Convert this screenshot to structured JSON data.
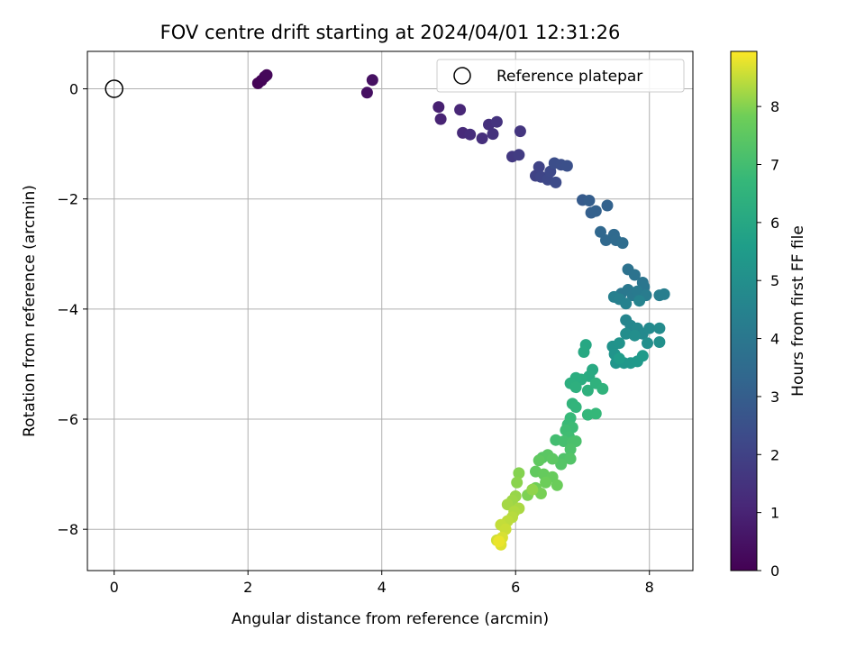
{
  "chart_data": {
    "type": "scatter",
    "title": "FOV centre drift starting at 2024/04/01 12:31:26",
    "xlabel": "Angular distance from reference (arcmin)",
    "ylabel": "Rotation from reference (arcmin)",
    "xlim": [
      -0.4,
      8.65
    ],
    "ylim": [
      -8.75,
      0.68
    ],
    "x_ticks": [
      0,
      2,
      4,
      6,
      8
    ],
    "y_ticks": [
      0,
      -2,
      -4,
      -6,
      -8
    ],
    "grid": true,
    "colormap": "viridis",
    "colorbar": {
      "label": "Hours from first FF file",
      "range": [
        0,
        8.95
      ],
      "ticks": [
        0,
        1,
        2,
        3,
        4,
        5,
        6,
        7,
        8
      ]
    },
    "legend": {
      "position": "top-right",
      "entries": [
        "Reference platepar"
      ]
    },
    "reference_point": {
      "x": 0,
      "y": 0
    },
    "points": [
      [
        2.15,
        0.1,
        0.05
      ],
      [
        2.2,
        0.15,
        0.1
      ],
      [
        2.25,
        0.22,
        0.15
      ],
      [
        2.28,
        0.25,
        0.2
      ],
      [
        3.78,
        -0.07,
        0.4
      ],
      [
        3.86,
        0.16,
        0.45
      ],
      [
        4.85,
        -0.33,
        0.9
      ],
      [
        4.88,
        -0.55,
        1.0
      ],
      [
        5.17,
        -0.38,
        1.1
      ],
      [
        5.21,
        -0.8,
        1.2
      ],
      [
        5.32,
        -0.83,
        1.3
      ],
      [
        5.5,
        -0.9,
        1.35
      ],
      [
        5.6,
        -0.65,
        1.4
      ],
      [
        5.66,
        -0.82,
        1.45
      ],
      [
        5.72,
        -0.6,
        1.5
      ],
      [
        6.07,
        -0.77,
        1.6
      ],
      [
        5.95,
        -1.23,
        1.7
      ],
      [
        6.05,
        -1.2,
        1.8
      ],
      [
        6.3,
        -1.58,
        2.0
      ],
      [
        6.35,
        -1.42,
        2.05
      ],
      [
        6.38,
        -1.6,
        2.1
      ],
      [
        6.48,
        -1.65,
        2.2
      ],
      [
        6.52,
        -1.5,
        2.25
      ],
      [
        6.6,
        -1.7,
        2.3
      ],
      [
        6.58,
        -1.35,
        2.4
      ],
      [
        6.68,
        -1.38,
        2.45
      ],
      [
        6.77,
        -1.4,
        2.5
      ],
      [
        7.0,
        -2.02,
        2.9
      ],
      [
        7.1,
        -2.03,
        3.0
      ],
      [
        7.13,
        -2.25,
        3.05
      ],
      [
        7.2,
        -2.22,
        3.1
      ],
      [
        7.37,
        -2.12,
        3.15
      ],
      [
        7.27,
        -2.6,
        3.35
      ],
      [
        7.35,
        -2.75,
        3.4
      ],
      [
        7.47,
        -2.65,
        3.45
      ],
      [
        7.5,
        -2.75,
        3.5
      ],
      [
        7.6,
        -2.8,
        3.55
      ],
      [
        7.68,
        -3.28,
        3.8
      ],
      [
        7.78,
        -3.38,
        3.85
      ],
      [
        7.9,
        -3.52,
        3.9
      ],
      [
        7.92,
        -3.6,
        3.95
      ],
      [
        7.58,
        -3.72,
        4.0
      ],
      [
        7.68,
        -3.65,
        4.05
      ],
      [
        7.75,
        -3.75,
        4.1
      ],
      [
        7.82,
        -3.68,
        4.15
      ],
      [
        7.95,
        -3.75,
        4.2
      ],
      [
        8.15,
        -3.75,
        4.25
      ],
      [
        8.22,
        -3.73,
        4.3
      ],
      [
        7.47,
        -3.78,
        4.35
      ],
      [
        7.55,
        -3.82,
        4.4
      ],
      [
        7.65,
        -3.9,
        4.45
      ],
      [
        7.85,
        -3.85,
        4.5
      ],
      [
        7.65,
        -4.2,
        4.6
      ],
      [
        7.72,
        -4.3,
        4.65
      ],
      [
        7.82,
        -4.35,
        4.7
      ],
      [
        7.9,
        -4.45,
        4.75
      ],
      [
        8.0,
        -4.35,
        4.8
      ],
      [
        8.15,
        -4.35,
        4.85
      ],
      [
        7.65,
        -4.45,
        4.9
      ],
      [
        7.78,
        -4.48,
        4.95
      ],
      [
        7.97,
        -4.62,
        5.0
      ],
      [
        8.15,
        -4.6,
        5.05
      ],
      [
        7.45,
        -4.68,
        5.1
      ],
      [
        7.55,
        -4.62,
        5.15
      ],
      [
        7.48,
        -4.82,
        5.2
      ],
      [
        7.5,
        -4.98,
        5.25
      ],
      [
        7.62,
        -4.98,
        5.3
      ],
      [
        7.72,
        -4.98,
        5.35
      ],
      [
        7.82,
        -4.95,
        5.4
      ],
      [
        7.9,
        -4.85,
        5.45
      ],
      [
        7.55,
        -4.9,
        5.5
      ],
      [
        7.05,
        -4.65,
        6.0
      ],
      [
        7.02,
        -4.78,
        6.05
      ],
      [
        7.15,
        -5.1,
        6.1
      ],
      [
        7.1,
        -5.22,
        6.15
      ],
      [
        6.98,
        -5.28,
        6.2
      ],
      [
        6.9,
        -5.25,
        6.25
      ],
      [
        6.82,
        -5.35,
        6.3
      ],
      [
        6.9,
        -5.42,
        6.35
      ],
      [
        7.08,
        -5.48,
        6.4
      ],
      [
        7.2,
        -5.35,
        6.45
      ],
      [
        7.3,
        -5.45,
        6.5
      ],
      [
        6.85,
        -5.72,
        6.55
      ],
      [
        6.9,
        -5.78,
        6.6
      ],
      [
        7.08,
        -5.92,
        6.65
      ],
      [
        7.2,
        -5.9,
        6.7
      ],
      [
        6.82,
        -5.98,
        6.75
      ],
      [
        6.78,
        -6.1,
        6.8
      ],
      [
        6.85,
        -6.15,
        6.85
      ],
      [
        6.75,
        -6.2,
        6.9
      ],
      [
        6.8,
        -6.32,
        6.95
      ],
      [
        6.6,
        -6.38,
        7.0
      ],
      [
        6.72,
        -6.4,
        7.05
      ],
      [
        6.85,
        -6.42,
        7.1
      ],
      [
        6.9,
        -6.4,
        7.15
      ],
      [
        6.82,
        -6.55,
        7.2
      ],
      [
        6.72,
        -6.72,
        7.25
      ],
      [
        6.82,
        -6.72,
        7.3
      ],
      [
        6.68,
        -6.82,
        7.35
      ],
      [
        6.4,
        -6.7,
        7.4
      ],
      [
        6.48,
        -6.65,
        7.45
      ],
      [
        6.55,
        -6.72,
        7.5
      ],
      [
        6.35,
        -6.75,
        7.55
      ],
      [
        6.3,
        -6.95,
        7.6
      ],
      [
        6.42,
        -7.0,
        7.65
      ],
      [
        6.55,
        -7.05,
        7.7
      ],
      [
        6.62,
        -7.2,
        7.75
      ],
      [
        6.45,
        -7.15,
        7.8
      ],
      [
        6.3,
        -7.25,
        7.85
      ],
      [
        6.38,
        -7.35,
        7.9
      ],
      [
        6.18,
        -7.38,
        7.95
      ],
      [
        6.05,
        -6.98,
        8.0
      ],
      [
        6.02,
        -7.15,
        8.05
      ],
      [
        6.25,
        -7.28,
        8.1
      ],
      [
        6.0,
        -7.4,
        8.15
      ],
      [
        5.95,
        -7.48,
        8.2
      ],
      [
        5.88,
        -7.55,
        8.25
      ],
      [
        6.05,
        -7.62,
        8.3
      ],
      [
        5.98,
        -7.68,
        8.35
      ],
      [
        5.95,
        -7.78,
        8.4
      ],
      [
        5.88,
        -7.85,
        8.45
      ],
      [
        5.78,
        -7.92,
        8.5
      ],
      [
        5.85,
        -8.0,
        8.55
      ],
      [
        5.72,
        -8.2,
        8.6
      ],
      [
        5.8,
        -8.15,
        8.65
      ],
      [
        5.78,
        -8.28,
        8.7
      ],
      [
        5.75,
        -8.22,
        8.8
      ]
    ]
  }
}
